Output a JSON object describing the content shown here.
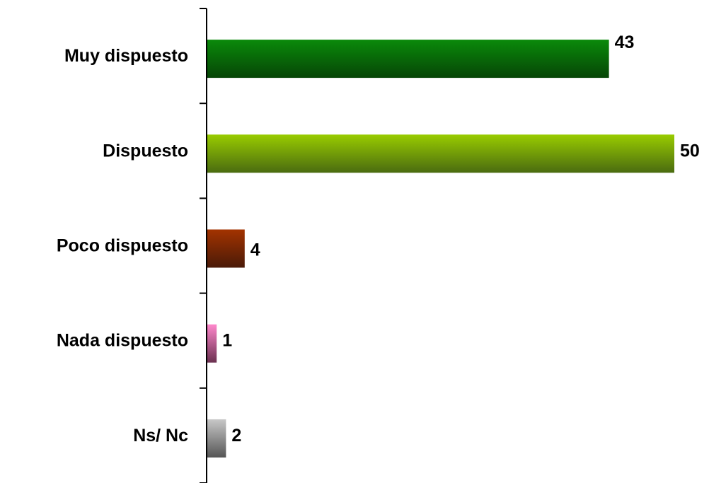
{
  "chart_data": {
    "type": "bar",
    "orientation": "horizontal",
    "categories": [
      "Muy dispuesto",
      "Dispuesto",
      "Poco dispuesto",
      "Nada dispuesto",
      "Ns/ Nc"
    ],
    "values": [
      43,
      50,
      4,
      1,
      2
    ],
    "data_labels": [
      "43",
      "50",
      "4",
      "1",
      "2"
    ],
    "xlim": [
      0,
      50
    ],
    "grid": false,
    "legend": "none",
    "colors": [
      {
        "top": "#0a8a0a",
        "bottom": "#064506"
      },
      {
        "top": "#99cc00",
        "bottom": "#4a6b10"
      },
      {
        "top": "#a33300",
        "bottom": "#4a1a08"
      },
      {
        "top": "#ff88cc",
        "bottom": "#6b3050"
      },
      {
        "top": "#c8c8c8",
        "bottom": "#555555"
      }
    ]
  }
}
